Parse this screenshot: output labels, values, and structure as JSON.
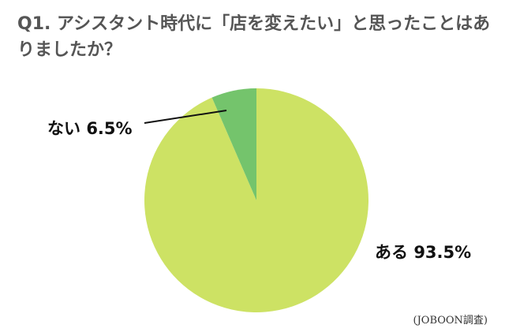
{
  "chart_data": {
    "type": "pie",
    "title": "Q1. アシスタント時代に「店を変えたい」と思ったことはありましたか？",
    "slices": [
      {
        "label": "ある",
        "value": 93.5,
        "value_text": "93.5%",
        "color": "#cde264"
      },
      {
        "label": "ない",
        "value": 6.5,
        "value_text": "6.5%",
        "color": "#74c46c"
      }
    ],
    "start_angle": "12 o'clock",
    "direction": "counter-clockwise for ない, remainder ある",
    "legend": "none",
    "source": "(JOBOON調査)"
  }
}
